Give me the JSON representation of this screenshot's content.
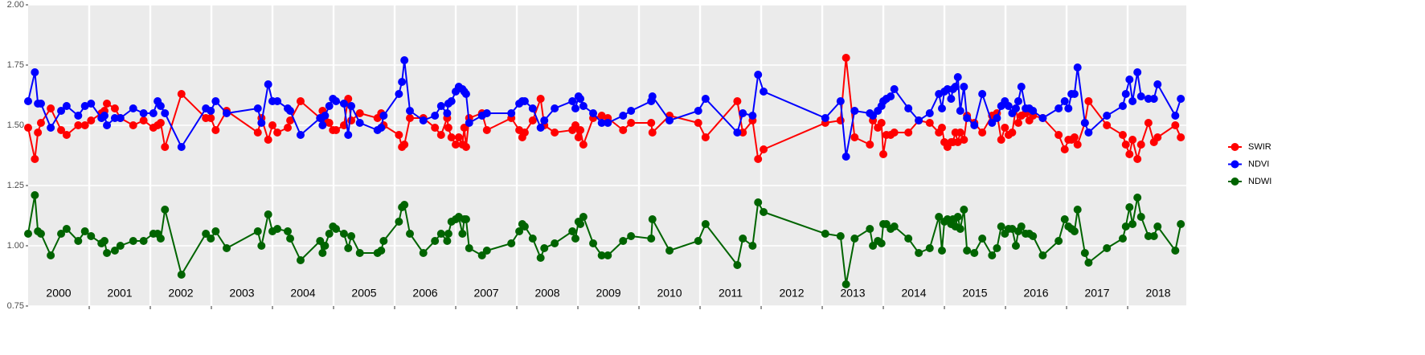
{
  "chart_data": {
    "type": "line",
    "x": [
      2000.0,
      2000.11,
      2000.16,
      2000.21,
      2000.37,
      2000.54,
      2000.63,
      2000.82,
      2000.93,
      2001.03,
      2001.2,
      2001.25,
      2001.29,
      2001.42,
      2001.51,
      2001.72,
      2001.89,
      2002.05,
      2002.12,
      2002.17,
      2002.24,
      2002.51,
      2002.91,
      2002.99,
      2003.07,
      2003.25,
      2003.76,
      2003.82,
      2003.93,
      2004.0,
      2004.08,
      2004.25,
      2004.29,
      2004.46,
      2004.78,
      2004.82,
      2004.86,
      2004.93,
      2004.99,
      2005.04,
      2005.17,
      2005.24,
      2005.29,
      2005.43,
      2005.72,
      2005.78,
      2005.82,
      2006.07,
      2006.12,
      2006.16,
      2006.25,
      2006.47,
      2006.66,
      2006.76,
      2006.86,
      2006.88,
      2006.93,
      2007.0,
      2007.05,
      2007.11,
      2007.14,
      2007.17,
      2007.22,
      2007.43,
      2007.51,
      2007.91,
      2008.04,
      2008.09,
      2008.13,
      2008.26,
      2008.39,
      2008.45,
      2008.62,
      2008.91,
      2008.96,
      2009.01,
      2009.04,
      2009.09,
      2009.25,
      2009.39,
      2009.49,
      2009.74,
      2009.87,
      2010.2,
      2010.22,
      2010.5,
      2010.97,
      2011.09,
      2011.61,
      2011.7,
      2011.86,
      2011.95,
      2012.04,
      2013.05,
      2013.3,
      2013.39,
      2013.53,
      2013.78,
      2013.83,
      2013.91,
      2013.97,
      2014.0,
      2014.05,
      2014.12,
      2014.18,
      2014.41,
      2014.58,
      2014.76,
      2014.91,
      2014.96,
      2015.0,
      2015.05,
      2015.11,
      2015.14,
      2015.18,
      2015.22,
      2015.26,
      2015.32,
      2015.37,
      2015.49,
      2015.62,
      2015.78,
      2015.86,
      2015.93,
      2015.99,
      2016.05,
      2016.11,
      2016.17,
      2016.21,
      2016.26,
      2016.33,
      2016.39,
      2016.45,
      2016.61,
      2016.87,
      2016.97,
      2017.03,
      2017.08,
      2017.13,
      2017.18,
      2017.3,
      2017.36,
      2017.66,
      2017.92,
      2017.97,
      2018.03,
      2018.08,
      2018.16,
      2018.22,
      2018.34,
      2018.43,
      2018.49,
      2018.78,
      2018.87
    ],
    "series": [
      {
        "name": "SWIR",
        "color": "#ff0000",
        "values": [
          1.49,
          1.36,
          1.47,
          1.51,
          1.57,
          1.48,
          1.46,
          1.5,
          1.5,
          1.52,
          1.55,
          1.56,
          1.59,
          1.57,
          1.53,
          1.5,
          1.52,
          1.49,
          1.5,
          1.51,
          1.41,
          1.63,
          1.53,
          1.53,
          1.48,
          1.56,
          1.47,
          1.53,
          1.44,
          1.5,
          1.47,
          1.49,
          1.52,
          1.6,
          1.53,
          1.56,
          1.52,
          1.51,
          1.48,
          1.48,
          1.5,
          1.61,
          1.52,
          1.55,
          1.53,
          1.55,
          1.5,
          1.46,
          1.41,
          1.42,
          1.53,
          1.53,
          1.49,
          1.46,
          1.53,
          1.49,
          1.45,
          1.42,
          1.45,
          1.42,
          1.49,
          1.41,
          1.53,
          1.55,
          1.48,
          1.53,
          1.48,
          1.45,
          1.47,
          1.52,
          1.61,
          1.5,
          1.47,
          1.48,
          1.5,
          1.45,
          1.48,
          1.42,
          1.53,
          1.54,
          1.53,
          1.48,
          1.51,
          1.51,
          1.47,
          1.54,
          1.51,
          1.45,
          1.6,
          1.47,
          1.52,
          1.36,
          1.4,
          1.51,
          1.52,
          1.78,
          1.45,
          1.42,
          1.52,
          1.49,
          1.51,
          1.38,
          1.46,
          1.46,
          1.47,
          1.47,
          1.52,
          1.51,
          1.47,
          1.49,
          1.43,
          1.41,
          1.43,
          1.43,
          1.47,
          1.43,
          1.47,
          1.44,
          1.54,
          1.51,
          1.47,
          1.54,
          1.55,
          1.44,
          1.49,
          1.46,
          1.47,
          1.57,
          1.51,
          1.54,
          1.55,
          1.52,
          1.54,
          1.53,
          1.46,
          1.4,
          1.44,
          1.44,
          1.45,
          1.42,
          1.51,
          1.6,
          1.5,
          1.46,
          1.42,
          1.38,
          1.44,
          1.36,
          1.42,
          1.51,
          1.43,
          1.45,
          1.5,
          1.45
        ]
      },
      {
        "name": "NDVI",
        "color": "#0000ff",
        "values": [
          1.6,
          1.72,
          1.59,
          1.59,
          1.49,
          1.56,
          1.58,
          1.54,
          1.58,
          1.59,
          1.53,
          1.54,
          1.5,
          1.53,
          1.53,
          1.57,
          1.55,
          1.55,
          1.6,
          1.58,
          1.55,
          1.41,
          1.57,
          1.56,
          1.6,
          1.55,
          1.57,
          1.51,
          1.67,
          1.6,
          1.6,
          1.57,
          1.56,
          1.46,
          1.53,
          1.5,
          1.54,
          1.58,
          1.61,
          1.6,
          1.59,
          1.46,
          1.58,
          1.51,
          1.48,
          1.49,
          1.54,
          1.63,
          1.68,
          1.77,
          1.56,
          1.52,
          1.54,
          1.58,
          1.55,
          1.59,
          1.6,
          1.64,
          1.66,
          1.65,
          1.64,
          1.63,
          1.51,
          1.54,
          1.55,
          1.55,
          1.59,
          1.6,
          1.6,
          1.57,
          1.49,
          1.52,
          1.57,
          1.6,
          1.57,
          1.62,
          1.61,
          1.58,
          1.55,
          1.51,
          1.51,
          1.54,
          1.56,
          1.6,
          1.62,
          1.52,
          1.56,
          1.61,
          1.47,
          1.55,
          1.54,
          1.71,
          1.64,
          1.53,
          1.6,
          1.37,
          1.56,
          1.55,
          1.54,
          1.56,
          1.58,
          1.6,
          1.61,
          1.62,
          1.65,
          1.57,
          1.52,
          1.55,
          1.63,
          1.57,
          1.64,
          1.65,
          1.61,
          1.65,
          1.66,
          1.7,
          1.56,
          1.66,
          1.53,
          1.5,
          1.63,
          1.51,
          1.53,
          1.58,
          1.6,
          1.58,
          1.55,
          1.57,
          1.6,
          1.66,
          1.57,
          1.57,
          1.56,
          1.53,
          1.57,
          1.6,
          1.57,
          1.63,
          1.63,
          1.74,
          1.51,
          1.47,
          1.54,
          1.58,
          1.63,
          1.69,
          1.6,
          1.72,
          1.62,
          1.61,
          1.61,
          1.67,
          1.54,
          1.61
        ]
      },
      {
        "name": "NDWI",
        "color": "#006400",
        "values": [
          1.05,
          1.21,
          1.06,
          1.05,
          0.96,
          1.05,
          1.07,
          1.02,
          1.06,
          1.04,
          1.01,
          1.02,
          0.97,
          0.98,
          1.0,
          1.02,
          1.02,
          1.05,
          1.05,
          1.03,
          1.15,
          0.88,
          1.05,
          1.03,
          1.06,
          0.99,
          1.06,
          1.0,
          1.13,
          1.06,
          1.07,
          1.06,
          1.03,
          0.94,
          1.02,
          0.97,
          1.0,
          1.05,
          1.08,
          1.07,
          1.05,
          0.99,
          1.04,
          0.97,
          0.97,
          0.98,
          1.02,
          1.1,
          1.16,
          1.17,
          1.05,
          0.97,
          1.02,
          1.05,
          1.02,
          1.05,
          1.1,
          1.11,
          1.12,
          1.05,
          1.11,
          1.11,
          0.99,
          0.96,
          0.98,
          1.01,
          1.06,
          1.09,
          1.08,
          1.03,
          0.95,
          0.99,
          1.01,
          1.06,
          1.03,
          1.1,
          1.09,
          1.12,
          1.01,
          0.96,
          0.96,
          1.02,
          1.04,
          1.03,
          1.11,
          0.98,
          1.02,
          1.09,
          0.92,
          1.03,
          1.0,
          1.18,
          1.14,
          1.05,
          1.04,
          0.84,
          1.03,
          1.07,
          1.0,
          1.02,
          1.01,
          1.09,
          1.09,
          1.07,
          1.08,
          1.03,
          0.97,
          0.99,
          1.12,
          0.98,
          1.1,
          1.11,
          1.09,
          1.11,
          1.08,
          1.12,
          1.07,
          1.15,
          0.98,
          0.97,
          1.03,
          0.96,
          0.99,
          1.08,
          1.05,
          1.07,
          1.07,
          1.0,
          1.06,
          1.08,
          1.05,
          1.05,
          1.04,
          0.96,
          1.02,
          1.11,
          1.08,
          1.07,
          1.06,
          1.15,
          0.97,
          0.93,
          0.99,
          1.03,
          1.08,
          1.16,
          1.09,
          1.2,
          1.12,
          1.04,
          1.04,
          1.08,
          0.98,
          1.09
        ]
      }
    ],
    "xlim": [
      2000,
      2018.96
    ],
    "xticks": [
      2001,
      2002,
      2003,
      2004,
      2005,
      2006,
      2007,
      2008,
      2009,
      2010,
      2011,
      2012,
      2013,
      2014,
      2015,
      2016,
      2017,
      2018
    ],
    "ylim": [
      0.75,
      2
    ],
    "yticks": [
      0.75,
      {
        "value": 1,
        "label": "1.00"
      },
      1.25,
      {
        "value": 1.5,
        "label": "1.50"
      },
      1.75,
      {
        "value": 2,
        "label": "2.00"
      }
    ],
    "annotations": [
      "2000",
      "2001",
      "2002",
      "2003",
      "2004",
      "2005",
      "2006",
      "2007",
      "2008",
      "2009",
      "2010",
      "2011",
      "2012",
      "2013",
      "2014",
      "2015",
      "2016",
      "2017",
      "2018"
    ],
    "grid": true,
    "legend": "right"
  }
}
